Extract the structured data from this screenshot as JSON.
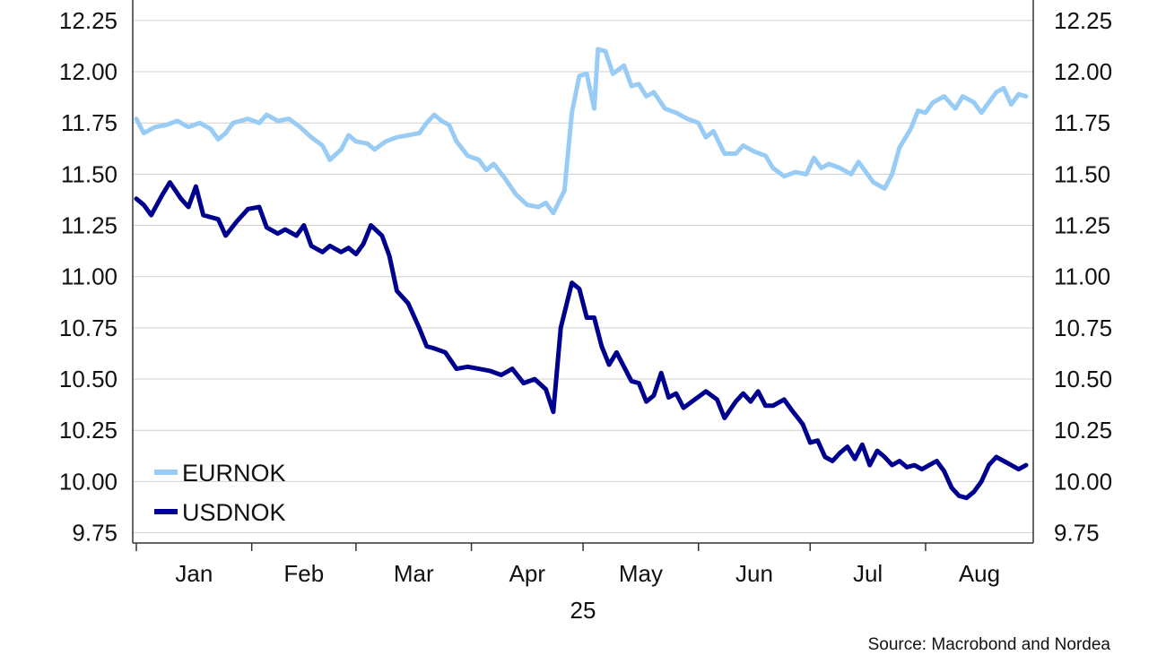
{
  "source": "Source: Macrobond and Nordea",
  "colors": {
    "EURNOK": "#99ccf5",
    "USDNOK": "#00008f",
    "grid": "#cfcfcf",
    "axis": "#333333"
  },
  "chart_data": {
    "type": "line",
    "title": "",
    "xlabel": "25",
    "ylabel": "",
    "ylim": [
      9.7,
      12.35
    ],
    "yticks": [
      "12.25",
      "12.00",
      "11.75",
      "11.50",
      "11.25",
      "11.00",
      "10.75",
      "10.50",
      "10.25",
      "10.00",
      "9.75"
    ],
    "xticks": [
      "Jan",
      "Feb",
      "Mar",
      "Apr",
      "May",
      "Jun",
      "Jul",
      "Aug"
    ],
    "x_range": [
      "2025-01-01",
      "2025-08-28"
    ],
    "grid": true,
    "legend": "bottom-left",
    "series": [
      {
        "name": "EURNOK",
        "points": [
          [
            "2025-01-01",
            11.77
          ],
          [
            "2025-01-03",
            11.7
          ],
          [
            "2025-01-06",
            11.73
          ],
          [
            "2025-01-09",
            11.74
          ],
          [
            "2025-01-12",
            11.76
          ],
          [
            "2025-01-15",
            11.73
          ],
          [
            "2025-01-18",
            11.75
          ],
          [
            "2025-01-21",
            11.72
          ],
          [
            "2025-01-23",
            11.67
          ],
          [
            "2025-01-25",
            11.7
          ],
          [
            "2025-01-27",
            11.75
          ],
          [
            "2025-01-31",
            11.77
          ],
          [
            "2025-02-03",
            11.75
          ],
          [
            "2025-02-05",
            11.79
          ],
          [
            "2025-02-08",
            11.76
          ],
          [
            "2025-02-11",
            11.77
          ],
          [
            "2025-02-14",
            11.73
          ],
          [
            "2025-02-17",
            11.68
          ],
          [
            "2025-02-20",
            11.64
          ],
          [
            "2025-02-22",
            11.57
          ],
          [
            "2025-02-25",
            11.62
          ],
          [
            "2025-02-27",
            11.69
          ],
          [
            "2025-03-01",
            11.66
          ],
          [
            "2025-03-04",
            11.65
          ],
          [
            "2025-03-06",
            11.62
          ],
          [
            "2025-03-09",
            11.66
          ],
          [
            "2025-03-12",
            11.68
          ],
          [
            "2025-03-15",
            11.69
          ],
          [
            "2025-03-18",
            11.7
          ],
          [
            "2025-03-20",
            11.75
          ],
          [
            "2025-03-22",
            11.79
          ],
          [
            "2025-03-24",
            11.76
          ],
          [
            "2025-03-26",
            11.74
          ],
          [
            "2025-03-28",
            11.66
          ],
          [
            "2025-03-31",
            11.59
          ],
          [
            "2025-04-03",
            11.57
          ],
          [
            "2025-04-05",
            11.52
          ],
          [
            "2025-04-07",
            11.55
          ],
          [
            "2025-04-10",
            11.48
          ],
          [
            "2025-04-13",
            11.4
          ],
          [
            "2025-04-16",
            11.35
          ],
          [
            "2025-04-19",
            11.34
          ],
          [
            "2025-04-21",
            11.36
          ],
          [
            "2025-04-23",
            11.31
          ],
          [
            "2025-04-26",
            11.42
          ],
          [
            "2025-04-28",
            11.8
          ],
          [
            "2025-04-30",
            11.98
          ],
          [
            "2025-05-02",
            11.99
          ],
          [
            "2025-05-04",
            11.82
          ],
          [
            "2025-05-05",
            12.11
          ],
          [
            "2025-05-07",
            12.1
          ],
          [
            "2025-05-09",
            11.99
          ],
          [
            "2025-05-12",
            12.03
          ],
          [
            "2025-05-14",
            11.93
          ],
          [
            "2025-05-16",
            11.94
          ],
          [
            "2025-05-18",
            11.88
          ],
          [
            "2025-05-20",
            11.9
          ],
          [
            "2025-05-23",
            11.82
          ],
          [
            "2025-05-26",
            11.8
          ],
          [
            "2025-05-29",
            11.77
          ],
          [
            "2025-06-01",
            11.75
          ],
          [
            "2025-06-03",
            11.68
          ],
          [
            "2025-06-05",
            11.71
          ],
          [
            "2025-06-08",
            11.6
          ],
          [
            "2025-06-11",
            11.6
          ],
          [
            "2025-06-13",
            11.64
          ],
          [
            "2025-06-16",
            11.61
          ],
          [
            "2025-06-19",
            11.59
          ],
          [
            "2025-06-21",
            11.53
          ],
          [
            "2025-06-24",
            11.49
          ],
          [
            "2025-06-27",
            11.51
          ],
          [
            "2025-06-30",
            11.5
          ],
          [
            "2025-07-02",
            11.58
          ],
          [
            "2025-07-04",
            11.53
          ],
          [
            "2025-07-06",
            11.55
          ],
          [
            "2025-07-09",
            11.53
          ],
          [
            "2025-07-12",
            11.5
          ],
          [
            "2025-07-14",
            11.56
          ],
          [
            "2025-07-16",
            11.51
          ],
          [
            "2025-07-18",
            11.46
          ],
          [
            "2025-07-21",
            11.43
          ],
          [
            "2025-07-23",
            11.5
          ],
          [
            "2025-07-25",
            11.63
          ],
          [
            "2025-07-28",
            11.72
          ],
          [
            "2025-07-30",
            11.81
          ],
          [
            "2025-08-01",
            11.8
          ],
          [
            "2025-08-03",
            11.85
          ],
          [
            "2025-08-06",
            11.88
          ],
          [
            "2025-08-09",
            11.82
          ],
          [
            "2025-08-11",
            11.88
          ],
          [
            "2025-08-14",
            11.85
          ],
          [
            "2025-08-16",
            11.8
          ],
          [
            "2025-08-18",
            11.85
          ],
          [
            "2025-08-20",
            11.9
          ],
          [
            "2025-08-22",
            11.92
          ],
          [
            "2025-08-24",
            11.84
          ],
          [
            "2025-08-26",
            11.89
          ],
          [
            "2025-08-28",
            11.88
          ]
        ]
      },
      {
        "name": "USDNOK",
        "points": [
          [
            "2025-01-01",
            11.38
          ],
          [
            "2025-01-03",
            11.35
          ],
          [
            "2025-01-05",
            11.3
          ],
          [
            "2025-01-08",
            11.4
          ],
          [
            "2025-01-10",
            11.46
          ],
          [
            "2025-01-13",
            11.38
          ],
          [
            "2025-01-15",
            11.34
          ],
          [
            "2025-01-17",
            11.44
          ],
          [
            "2025-01-19",
            11.3
          ],
          [
            "2025-01-23",
            11.28
          ],
          [
            "2025-01-25",
            11.2
          ],
          [
            "2025-01-28",
            11.27
          ],
          [
            "2025-01-31",
            11.33
          ],
          [
            "2025-02-03",
            11.34
          ],
          [
            "2025-02-05",
            11.24
          ],
          [
            "2025-02-08",
            11.21
          ],
          [
            "2025-02-10",
            11.23
          ],
          [
            "2025-02-13",
            11.2
          ],
          [
            "2025-02-15",
            11.25
          ],
          [
            "2025-02-17",
            11.15
          ],
          [
            "2025-02-20",
            11.12
          ],
          [
            "2025-02-22",
            11.15
          ],
          [
            "2025-02-25",
            11.12
          ],
          [
            "2025-02-27",
            11.14
          ],
          [
            "2025-03-01",
            11.11
          ],
          [
            "2025-03-03",
            11.16
          ],
          [
            "2025-03-05",
            11.25
          ],
          [
            "2025-03-08",
            11.2
          ],
          [
            "2025-03-10",
            11.1
          ],
          [
            "2025-03-12",
            10.93
          ],
          [
            "2025-03-15",
            10.87
          ],
          [
            "2025-03-18",
            10.75
          ],
          [
            "2025-03-20",
            10.66
          ],
          [
            "2025-03-22",
            10.65
          ],
          [
            "2025-03-25",
            10.63
          ],
          [
            "2025-03-28",
            10.55
          ],
          [
            "2025-03-31",
            10.56
          ],
          [
            "2025-04-03",
            10.55
          ],
          [
            "2025-04-06",
            10.54
          ],
          [
            "2025-04-09",
            10.52
          ],
          [
            "2025-04-12",
            10.55
          ],
          [
            "2025-04-15",
            10.48
          ],
          [
            "2025-04-18",
            10.5
          ],
          [
            "2025-04-21",
            10.45
          ],
          [
            "2025-04-23",
            10.34
          ],
          [
            "2025-04-25",
            10.75
          ],
          [
            "2025-04-28",
            10.97
          ],
          [
            "2025-04-30",
            10.94
          ],
          [
            "2025-05-02",
            10.8
          ],
          [
            "2025-05-04",
            10.8
          ],
          [
            "2025-05-06",
            10.66
          ],
          [
            "2025-05-08",
            10.57
          ],
          [
            "2025-05-10",
            10.63
          ],
          [
            "2025-05-12",
            10.56
          ],
          [
            "2025-05-14",
            10.49
          ],
          [
            "2025-05-16",
            10.48
          ],
          [
            "2025-05-18",
            10.39
          ],
          [
            "2025-05-20",
            10.42
          ],
          [
            "2025-05-22",
            10.53
          ],
          [
            "2025-05-24",
            10.41
          ],
          [
            "2025-05-26",
            10.43
          ],
          [
            "2025-05-28",
            10.36
          ],
          [
            "2025-05-31",
            10.4
          ],
          [
            "2025-06-03",
            10.44
          ],
          [
            "2025-06-06",
            10.4
          ],
          [
            "2025-06-08",
            10.31
          ],
          [
            "2025-06-11",
            10.39
          ],
          [
            "2025-06-13",
            10.43
          ],
          [
            "2025-06-15",
            10.39
          ],
          [
            "2025-06-17",
            10.44
          ],
          [
            "2025-06-19",
            10.37
          ],
          [
            "2025-06-21",
            10.37
          ],
          [
            "2025-06-24",
            10.4
          ],
          [
            "2025-06-26",
            10.35
          ],
          [
            "2025-06-29",
            10.28
          ],
          [
            "2025-07-01",
            10.19
          ],
          [
            "2025-07-03",
            10.2
          ],
          [
            "2025-07-05",
            10.12
          ],
          [
            "2025-07-07",
            10.1
          ],
          [
            "2025-07-09",
            10.14
          ],
          [
            "2025-07-11",
            10.17
          ],
          [
            "2025-07-13",
            10.11
          ],
          [
            "2025-07-15",
            10.18
          ],
          [
            "2025-07-17",
            10.08
          ],
          [
            "2025-07-19",
            10.15
          ],
          [
            "2025-07-21",
            10.12
          ],
          [
            "2025-07-23",
            10.08
          ],
          [
            "2025-07-25",
            10.1
          ],
          [
            "2025-07-27",
            10.07
          ],
          [
            "2025-07-29",
            10.08
          ],
          [
            "2025-07-31",
            10.06
          ],
          [
            "2025-08-02",
            10.08
          ],
          [
            "2025-08-04",
            10.1
          ],
          [
            "2025-08-06",
            10.05
          ],
          [
            "2025-08-08",
            9.97
          ],
          [
            "2025-08-10",
            9.93
          ],
          [
            "2025-08-12",
            9.92
          ],
          [
            "2025-08-14",
            9.95
          ],
          [
            "2025-08-16",
            10.0
          ],
          [
            "2025-08-18",
            10.08
          ],
          [
            "2025-08-20",
            10.12
          ],
          [
            "2025-08-22",
            10.1
          ],
          [
            "2025-08-24",
            10.08
          ],
          [
            "2025-08-26",
            10.06
          ],
          [
            "2025-08-28",
            10.08
          ]
        ]
      }
    ]
  }
}
